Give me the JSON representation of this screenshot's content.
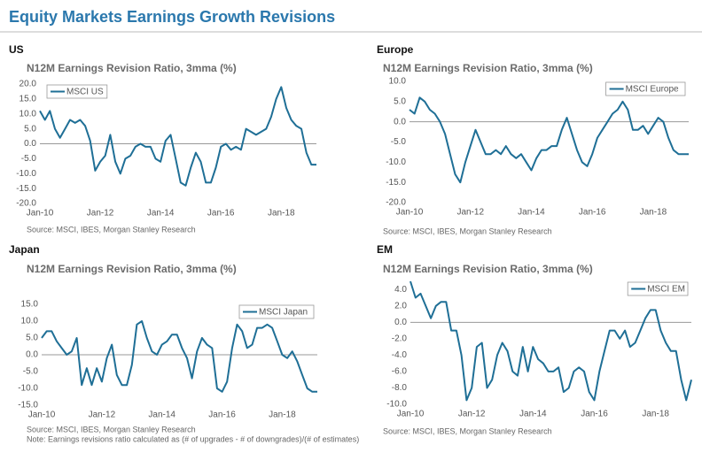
{
  "title": "Equity Markets Earnings Growth Revisions",
  "note": "Note: Earnings revisions ratio calculated as (# of upgrades - # of downgrades)/(# of estimates)",
  "chart_data": [
    {
      "type": "line",
      "region": "US",
      "title": "N12M Earnings Revision Ratio, 3mma (%)",
      "source": "Source: MSCI, IBES, Morgan Stanley Research",
      "categories": [
        "Jan-10",
        null,
        null,
        null,
        null,
        null,
        null,
        null,
        null,
        null,
        null,
        null,
        "Jan-12",
        null,
        null,
        null,
        null,
        null,
        null,
        null,
        null,
        null,
        null,
        null,
        "Jan-14",
        null,
        null,
        null,
        null,
        null,
        null,
        null,
        null,
        null,
        null,
        null,
        "Jan-16",
        null,
        null,
        null,
        null,
        null,
        null,
        null,
        null,
        null,
        null,
        null,
        "Jan-18",
        null,
        null,
        null,
        null,
        null,
        null,
        null
      ],
      "series": [
        {
          "name": "MSCI US",
          "color": "#1f6f96",
          "values": [
            11,
            8,
            11,
            5,
            2,
            5,
            8,
            7,
            8,
            6,
            1,
            -9,
            -6,
            -4,
            3,
            -6,
            -10,
            -5,
            -4,
            -1,
            0,
            -1,
            -1,
            -5,
            -6,
            1,
            3,
            -5,
            -13,
            -14,
            -8,
            -3,
            -6,
            -13,
            -13,
            -8,
            -1,
            0,
            -2,
            -1,
            -2,
            5,
            4,
            3,
            4,
            5,
            9,
            15,
            19,
            12,
            8,
            6,
            5,
            -3,
            -7,
            -7
          ]
        }
      ],
      "ylim": [
        -20,
        20
      ],
      "yticks": [
        {
          "value": -20,
          "label": "-20.0"
        },
        {
          "value": -15,
          "label": "-15.0"
        },
        {
          "value": -10,
          "label": "-10.0"
        },
        {
          "value": -5,
          "label": "-5.0"
        },
        {
          "value": 0,
          "label": "0.0"
        },
        {
          "value": 5,
          "label": "5.0"
        },
        {
          "value": 10,
          "label": "10.0"
        },
        {
          "value": 15,
          "label": "15.0"
        },
        {
          "value": 20,
          "label": "20.0"
        }
      ],
      "legend": "upper left"
    },
    {
      "type": "line",
      "region": "Europe",
      "title": "N12M Earnings Revision Ratio, 3mma (%)",
      "source": "Source: MSCI, IBES, Morgan Stanley Research",
      "categories": [
        "Jan-10",
        null,
        null,
        null,
        null,
        null,
        null,
        null,
        null,
        null,
        null,
        null,
        "Jan-12",
        null,
        null,
        null,
        null,
        null,
        null,
        null,
        null,
        null,
        null,
        null,
        "Jan-14",
        null,
        null,
        null,
        null,
        null,
        null,
        null,
        null,
        null,
        null,
        null,
        "Jan-16",
        null,
        null,
        null,
        null,
        null,
        null,
        null,
        null,
        null,
        null,
        null,
        "Jan-18",
        null,
        null,
        null,
        null,
        null,
        null,
        null
      ],
      "series": [
        {
          "name": "MSCI Europe",
          "color": "#1f6f96",
          "values": [
            3,
            2,
            6,
            5,
            3,
            2,
            0,
            -3,
            -8,
            -13,
            -15,
            -10,
            -6,
            -2,
            -5,
            -8,
            -8,
            -7,
            -8,
            -6,
            -8,
            -9,
            -8,
            -10,
            -12,
            -9,
            -7,
            -7,
            -6,
            -6,
            -2,
            1,
            -3,
            -7,
            -10,
            -11,
            -8,
            -4,
            -2,
            0,
            2,
            3,
            5,
            3,
            -2,
            -2,
            -1,
            -3,
            -1,
            1,
            0,
            -4,
            -7,
            -8,
            -8,
            -8
          ]
        }
      ],
      "ylim": [
        -20,
        10
      ],
      "yticks": [
        {
          "value": -20,
          "label": "-20.0"
        },
        {
          "value": -15,
          "label": "-15.0"
        },
        {
          "value": -10,
          "label": "-10.0"
        },
        {
          "value": -5,
          "label": "-5.0"
        },
        {
          "value": 0,
          "label": "0.0"
        },
        {
          "value": 5,
          "label": "5.0"
        },
        {
          "value": 10,
          "label": "10.0"
        }
      ],
      "legend": "upper right"
    },
    {
      "type": "line",
      "region": "Japan",
      "title": "N12M Earnings Revision Ratio, 3mma (%)",
      "source": "Source: MSCI, IBES, Morgan Stanley Research",
      "categories": [
        "Jan-10",
        null,
        null,
        null,
        null,
        null,
        null,
        null,
        null,
        null,
        null,
        null,
        "Jan-12",
        null,
        null,
        null,
        null,
        null,
        null,
        null,
        null,
        null,
        null,
        null,
        "Jan-14",
        null,
        null,
        null,
        null,
        null,
        null,
        null,
        null,
        null,
        null,
        null,
        "Jan-16",
        null,
        null,
        null,
        null,
        null,
        null,
        null,
        null,
        null,
        null,
        null,
        "Jan-18",
        null,
        null,
        null,
        null,
        null,
        null,
        null
      ],
      "series": [
        {
          "name": "MSCI Japan",
          "color": "#1f6f96",
          "values": [
            5,
            7,
            7,
            4,
            2,
            0,
            1,
            5,
            -9,
            -4,
            -9,
            -4,
            -8,
            -1,
            3,
            -6,
            -9,
            -9,
            -3,
            9,
            10,
            5,
            1,
            0,
            3,
            4,
            6,
            6,
            2,
            -1,
            -7,
            1,
            5,
            3,
            2,
            -10,
            -11,
            -8,
            2,
            9,
            7,
            2,
            3,
            8,
            8,
            9,
            8,
            4,
            0,
            -1,
            1,
            -2,
            -6,
            -10,
            -11,
            -11
          ]
        }
      ],
      "ylim": [
        -15,
        15
      ],
      "yticks": [
        {
          "value": -15,
          "label": "-15.0"
        },
        {
          "value": -10,
          "label": "-10.0"
        },
        {
          "value": -5,
          "label": "-5.0"
        },
        {
          "value": 0,
          "label": "0.0"
        },
        {
          "value": 5,
          "label": "5.0"
        },
        {
          "value": 10,
          "label": "10.0"
        },
        {
          "value": 15,
          "label": "15.0"
        }
      ],
      "legend": "upper right"
    },
    {
      "type": "line",
      "region": "EM",
      "title": "N12M Earnings Revision Ratio, 3mma (%)",
      "source": "Source: MSCI, IBES, Morgan Stanley Research",
      "categories": [
        "Jan-10",
        null,
        null,
        null,
        null,
        null,
        null,
        null,
        null,
        null,
        null,
        null,
        "Jan-12",
        null,
        null,
        null,
        null,
        null,
        null,
        null,
        null,
        null,
        null,
        null,
        "Jan-14",
        null,
        null,
        null,
        null,
        null,
        null,
        null,
        null,
        null,
        null,
        null,
        "Jan-16",
        null,
        null,
        null,
        null,
        null,
        null,
        null,
        null,
        null,
        null,
        null,
        "Jan-18",
        null,
        null,
        null,
        null,
        null,
        null,
        null
      ],
      "series": [
        {
          "name": "MSCI EM",
          "color": "#1f6f96",
          "values": [
            5,
            3,
            3.5,
            2,
            0.5,
            2,
            2.5,
            2.5,
            -1,
            -1,
            -4,
            -9.5,
            -8,
            -3,
            -2.5,
            -8,
            -7,
            -4,
            -2.5,
            -3.5,
            -6,
            -6.5,
            -3,
            -6,
            -3,
            -4.5,
            -5,
            -6,
            -6,
            -5.5,
            -8.5,
            -8,
            -6,
            -5.5,
            -6,
            -8.5,
            -9.5,
            -6,
            -3.5,
            -1,
            -1,
            -2,
            -1,
            -3,
            -2.5,
            -1,
            0.5,
            1.5,
            1.5,
            -1,
            -2.5,
            -3.5,
            -3.5,
            -7,
            -9.5,
            -7
          ]
        }
      ],
      "ylim": [
        -10,
        5
      ],
      "yticks": [
        {
          "value": -10,
          "label": "-10.0"
        },
        {
          "value": -8,
          "label": "-8.0"
        },
        {
          "value": -6,
          "label": "-6.0"
        },
        {
          "value": -4,
          "label": "-4.0"
        },
        {
          "value": -2,
          "label": "-2.0"
        },
        {
          "value": 0,
          "label": "0.0"
        },
        {
          "value": 2,
          "label": "2.0"
        },
        {
          "value": 4,
          "label": "4.0"
        }
      ],
      "legend": "upper right"
    }
  ]
}
